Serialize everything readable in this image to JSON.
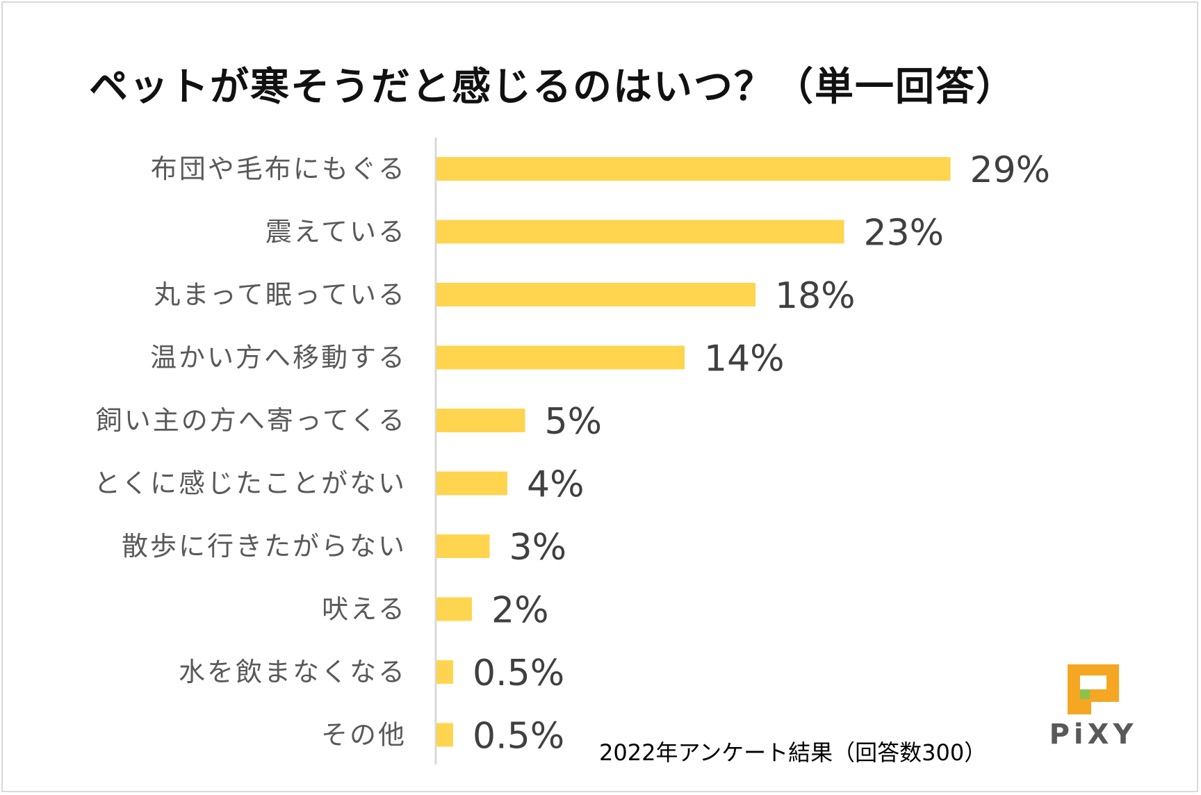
{
  "chart_data": {
    "type": "bar",
    "orientation": "horizontal",
    "title": "ペットが寒そうだと感じるのはいつ？（単一回答）",
    "categories": [
      "布団や毛布にもぐる",
      "震えている",
      "丸まって眠っている",
      "温かい方へ移動する",
      "飼い主の方へ寄ってくる",
      "とくに感じたことがない",
      "散歩に行きたがらない",
      "吠える",
      "水を飲まなくなる",
      "その他"
    ],
    "values": [
      29,
      23,
      18,
      14,
      5,
      4,
      3,
      2,
      0.5,
      0.5
    ],
    "value_labels": [
      "29%",
      "23%",
      "18%",
      "14%",
      "5%",
      "4%",
      "3%",
      "2%",
      "0.5%",
      "0.5%"
    ],
    "xlim": [
      0,
      30
    ],
    "grid": false,
    "bar_color": "#FFD54F",
    "axis_color": "#d9d9d9"
  },
  "footnote": "2022年アンケート結果（回答数300）",
  "logo": {
    "text": "PiXY",
    "accent_orange": "#F5A623",
    "accent_green": "#8BC34A"
  }
}
